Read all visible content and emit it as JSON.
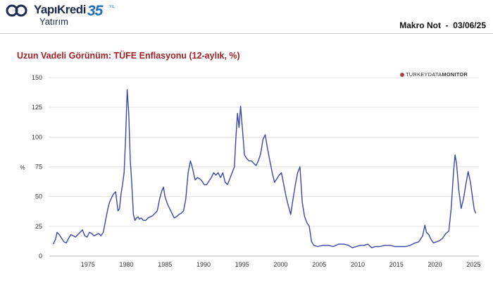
{
  "header": {
    "brand_name": "YapıKredi",
    "brand_sub": "Yatırım",
    "anniversary": "35",
    "anniversary_suffix": "YIL",
    "doc_type": "Makro Not",
    "doc_sep": "-",
    "doc_date": "03/06/25"
  },
  "chart_title": "Uzun Vadeli Görünüm: TÜFE Enflasyonu (12-aylık, %)",
  "source_label": {
    "part1": "TURKEYDATA",
    "part2": "MONITOR"
  },
  "colors": {
    "line": "#3b47a8",
    "title": "#a31f24",
    "grid": "#e3e3e3",
    "brand": "#1b2a4e",
    "accent": "#1e6fb8"
  },
  "chart_data": {
    "type": "line",
    "title": "Uzun Vadeli Görünüm: TÜFE Enflasyonu (12-aylık, %)",
    "xlabel": "",
    "ylabel": "%",
    "xlim": [
      1970,
      2025.7
    ],
    "ylim": [
      0,
      150
    ],
    "xticks": [
      1975,
      1980,
      1985,
      1990,
      1995,
      2000,
      2005,
      2010,
      2015,
      2020,
      2025
    ],
    "yticks": [
      0,
      25,
      50,
      75,
      100,
      125,
      150
    ],
    "grid": "horizontal",
    "series": [
      {
        "x": [
          1970.5,
          1970.8,
          1971.0,
          1971.3,
          1971.6,
          1971.9,
          1972.2,
          1972.5,
          1972.8,
          1973.1,
          1973.4,
          1973.7,
          1974.0,
          1974.3,
          1974.6,
          1974.9,
          1975.2,
          1975.5,
          1975.8,
          1976.1,
          1976.4,
          1976.7,
          1977.0,
          1977.3,
          1977.6,
          1977.8,
          1978.0,
          1978.3,
          1978.6,
          1978.9,
          1979.1,
          1979.3,
          1979.5,
          1979.7,
          1979.9,
          1980.1,
          1980.3,
          1980.5,
          1980.7,
          1980.9,
          1981.1,
          1981.3,
          1981.5,
          1981.7,
          1981.9,
          1982.2,
          1982.5,
          1982.8,
          1983.1,
          1983.4,
          1983.7,
          1984.0,
          1984.3,
          1984.6,
          1984.8,
          1985.0,
          1985.3,
          1985.6,
          1985.9,
          1986.2,
          1986.5,
          1986.8,
          1987.1,
          1987.4,
          1987.7,
          1988.0,
          1988.3,
          1988.6,
          1988.9,
          1989.2,
          1989.5,
          1989.8,
          1990.1,
          1990.4,
          1990.7,
          1991.0,
          1991.3,
          1991.6,
          1991.9,
          1992.2,
          1992.5,
          1992.8,
          1993.1,
          1993.4,
          1993.7,
          1994.0,
          1994.2,
          1994.4,
          1994.6,
          1994.8,
          1995.0,
          1995.3,
          1995.6,
          1995.9,
          1996.2,
          1996.5,
          1996.8,
          1997.1,
          1997.4,
          1997.7,
          1998.0,
          1998.3,
          1998.6,
          1998.9,
          1999.2,
          1999.5,
          1999.8,
          2000.1,
          2000.4,
          2000.7,
          2001.0,
          2001.3,
          2001.6,
          2001.9,
          2002.2,
          2002.5,
          2002.8,
          2003.1,
          2003.4,
          2003.7,
          2004.0,
          2004.3,
          2004.8,
          2005.5,
          2006.2,
          2006.8,
          2007.5,
          2008.2,
          2008.8,
          2009.3,
          2009.8,
          2010.3,
          2010.8,
          2011.3,
          2011.8,
          2012.3,
          2012.8,
          2013.5,
          2014.2,
          2014.8,
          2015.5,
          2016.2,
          2016.8,
          2017.4,
          2017.9,
          2018.4,
          2018.7,
          2018.9,
          2019.2,
          2019.5,
          2019.8,
          2020.2,
          2020.6,
          2021.0,
          2021.4,
          2021.8,
          2022.1,
          2022.4,
          2022.6,
          2022.8,
          2023.1,
          2023.4,
          2023.7,
          2024.0,
          2024.3,
          2024.6,
          2024.9,
          2025.1,
          2025.3
        ],
        "values": [
          10,
          14,
          20,
          18,
          15,
          12,
          11,
          15,
          18,
          17,
          16,
          18,
          20,
          22,
          17,
          16,
          20,
          19,
          17,
          18,
          19,
          17,
          20,
          30,
          40,
          45,
          48,
          52,
          54,
          38,
          40,
          52,
          60,
          70,
          100,
          140,
          120,
          80,
          60,
          35,
          30,
          32,
          33,
          31,
          32,
          30,
          30,
          32,
          33,
          34,
          36,
          38,
          48,
          55,
          58,
          50,
          44,
          40,
          36,
          32,
          33,
          35,
          36,
          38,
          48,
          70,
          80,
          73,
          64,
          66,
          65,
          63,
          60,
          60,
          63,
          66,
          70,
          68,
          70,
          66,
          70,
          62,
          60,
          65,
          70,
          75,
          100,
          120,
          108,
          126,
          110,
          85,
          82,
          80,
          80,
          78,
          76,
          80,
          86,
          98,
          102,
          90,
          80,
          70,
          62,
          65,
          68,
          70,
          60,
          50,
          42,
          35,
          48,
          60,
          70,
          75,
          45,
          33,
          28,
          25,
          12,
          9,
          8,
          9,
          9,
          8,
          10,
          10,
          9,
          7,
          8,
          9,
          9,
          10,
          7,
          8,
          8,
          9,
          9,
          8,
          8,
          8,
          9,
          11,
          12,
          17,
          26,
          20,
          18,
          14,
          11,
          12,
          13,
          15,
          19,
          21,
          40,
          70,
          85,
          78,
          55,
          40,
          48,
          60,
          71,
          62,
          48,
          39,
          36
        ]
      }
    ]
  }
}
